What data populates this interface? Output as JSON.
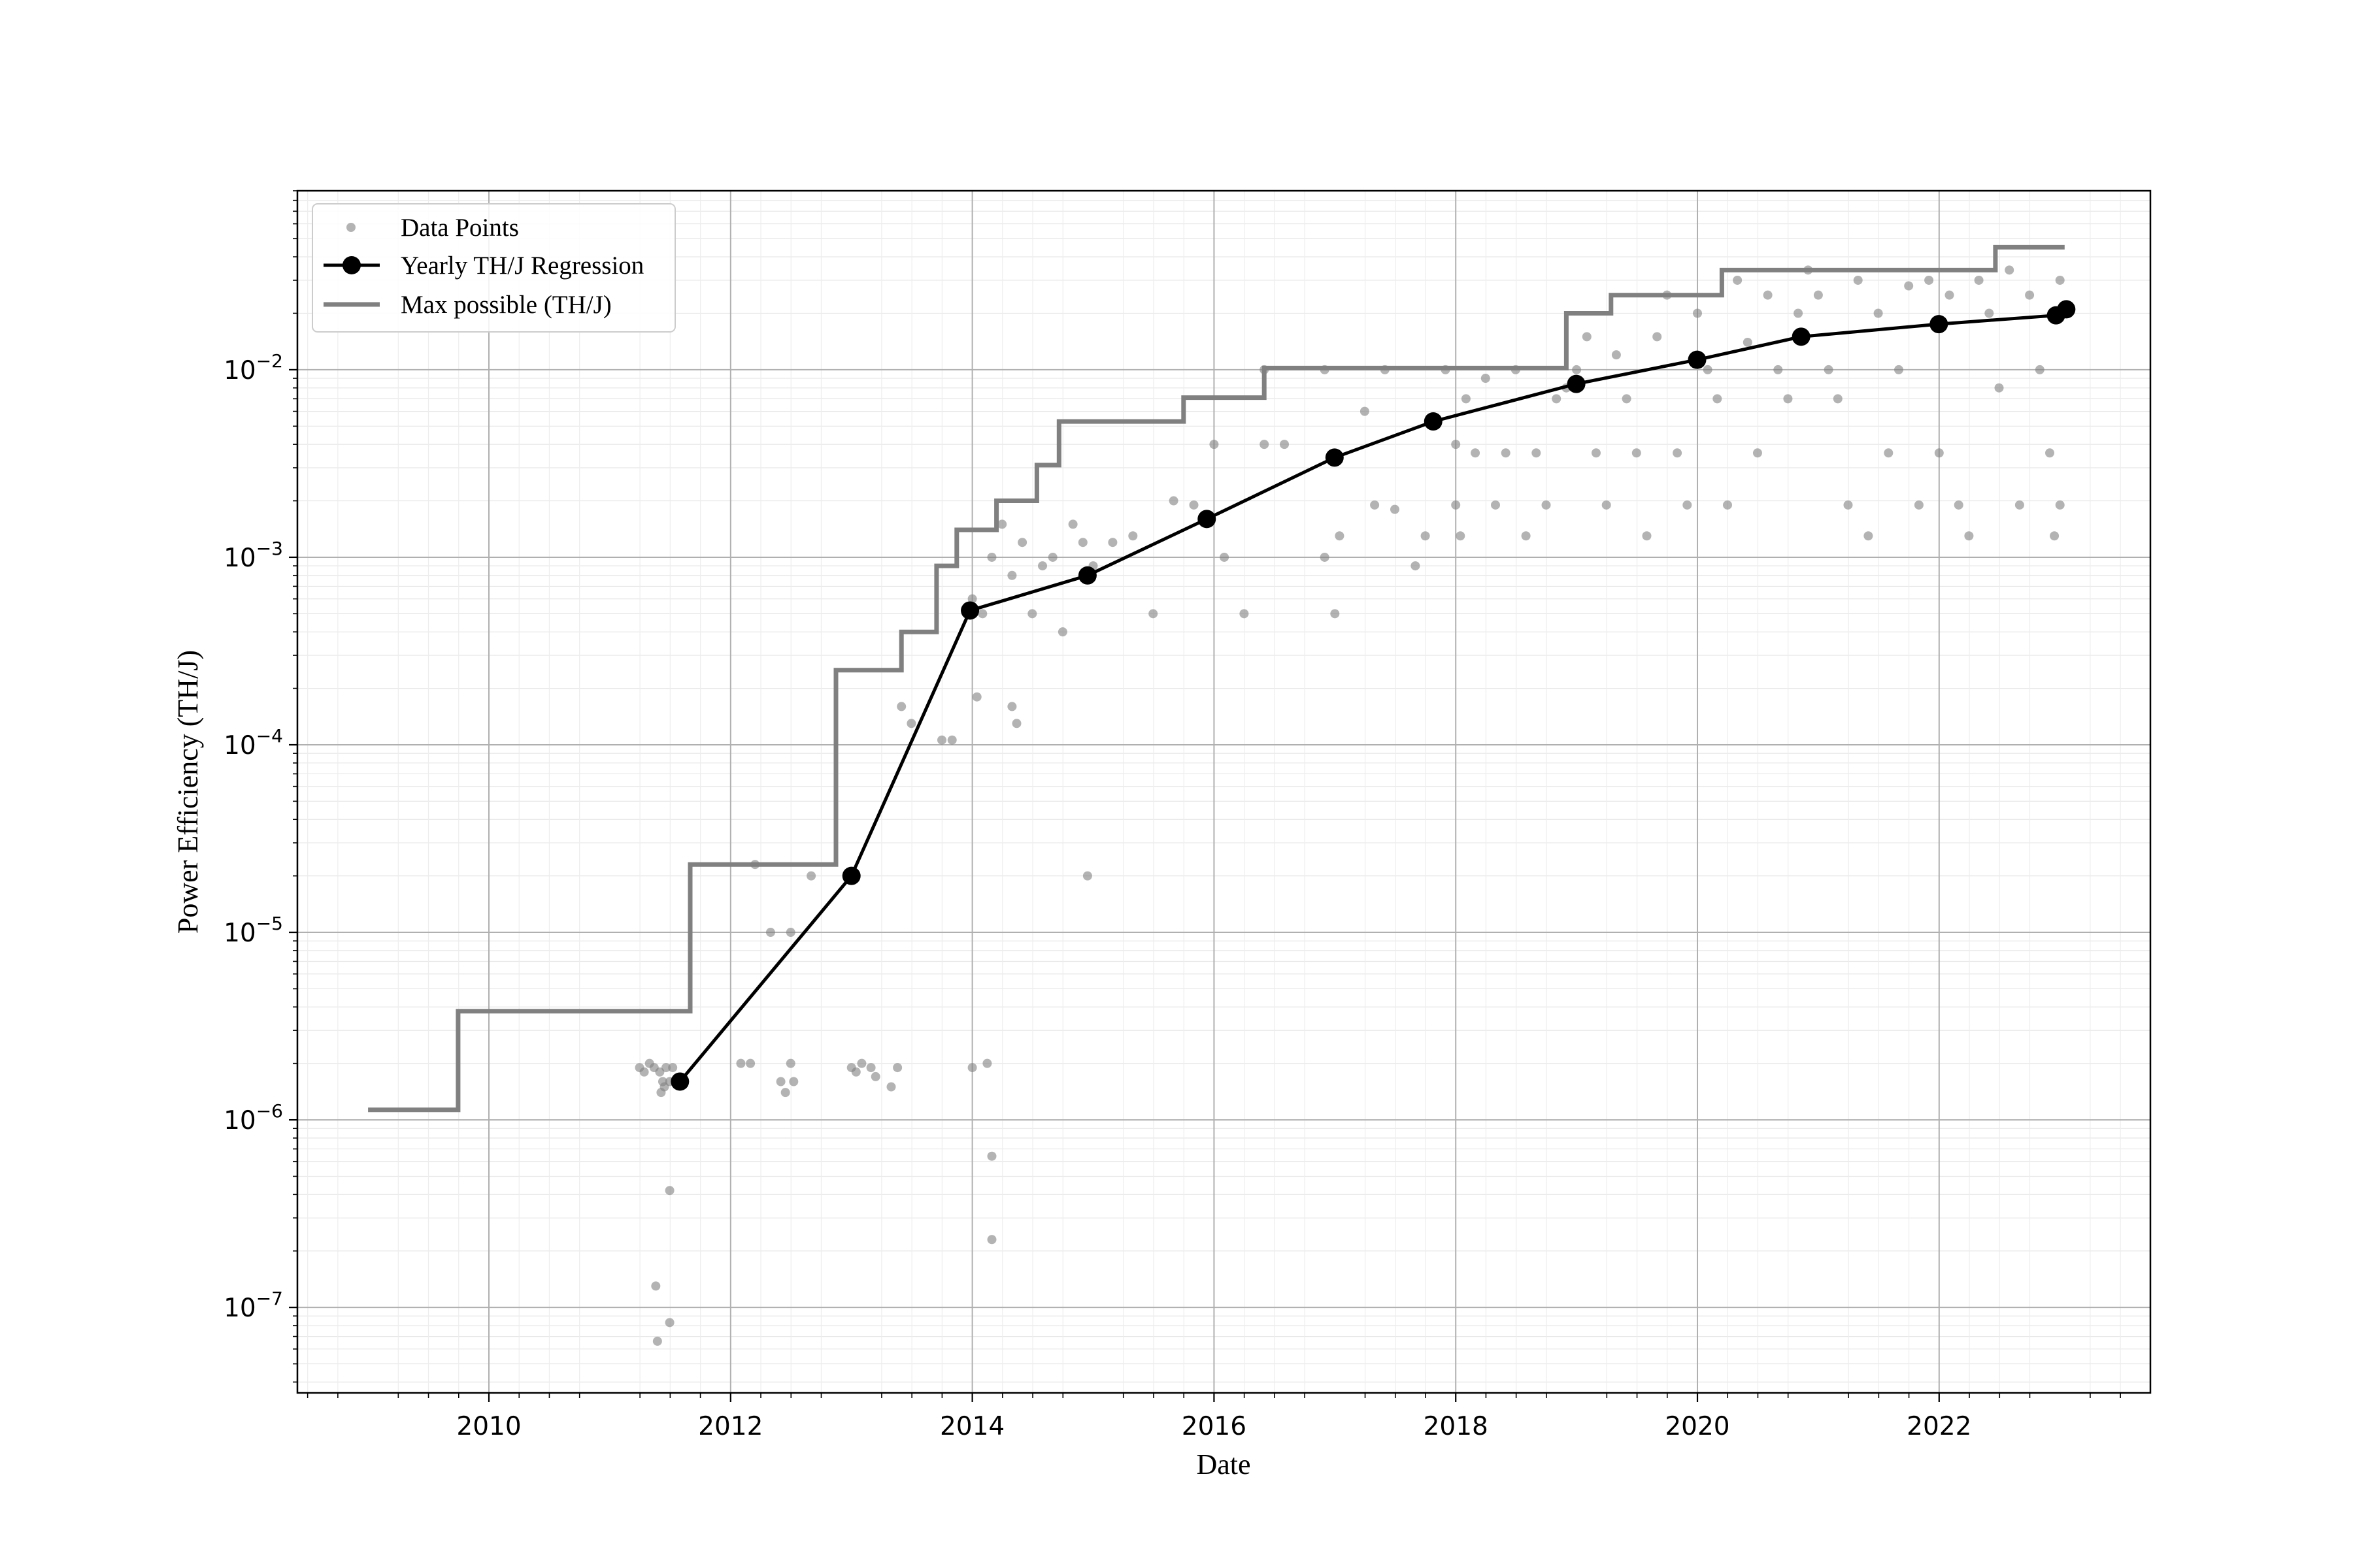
{
  "chart_data": {
    "type": "scatter",
    "title": "",
    "xlabel": "Date",
    "ylabel": "Power Efficiency (TH/J)",
    "x_axis": {
      "kind": "date",
      "range": [
        "2008-06-01",
        "2023-10-01"
      ],
      "ticks": [
        "2010",
        "2012",
        "2014",
        "2016",
        "2018",
        "2020",
        "2022"
      ]
    },
    "y_axis": {
      "scale": "log",
      "range": [
        3.5e-08,
        0.09
      ],
      "ticks": [
        1e-07,
        1e-06,
        1e-05,
        0.0001,
        0.001,
        0.01
      ],
      "tick_labels": [
        "10",
        "10",
        "10",
        "10",
        "10",
        "10"
      ],
      "tick_exponents": [
        "−7",
        "−6",
        "−5",
        "−4",
        "−3",
        "−2"
      ]
    },
    "grid": {
      "major": true,
      "minor": true
    },
    "legend": {
      "position": "top-left"
    },
    "colors": {
      "points": "#808080",
      "regression": "#000000",
      "max_line": "#808080"
    },
    "series": [
      {
        "name": "Data Points",
        "kind": "scatter",
        "points": [
          [
            "2011-04-01",
            1.9e-06
          ],
          [
            "2011-04-15",
            1.8e-06
          ],
          [
            "2011-05-01",
            2e-06
          ],
          [
            "2011-05-15",
            1.9e-06
          ],
          [
            "2011-06-01",
            1.8e-06
          ],
          [
            "2011-06-10",
            1.6e-06
          ],
          [
            "2011-06-15",
            1.5e-06
          ],
          [
            "2011-06-20",
            1.9e-06
          ],
          [
            "2011-07-01",
            1.6e-06
          ],
          [
            "2011-07-10",
            1.9e-06
          ],
          [
            "2011-06-05",
            1.4e-06
          ],
          [
            "2011-07-01",
            4.2e-07
          ],
          [
            "2011-05-20",
            1.3e-07
          ],
          [
            "2011-07-01",
            8.3e-08
          ],
          [
            "2011-05-25",
            6.6e-08
          ],
          [
            "2012-03-15",
            2.3e-05
          ],
          [
            "2012-05-01",
            1e-05
          ],
          [
            "2012-07-01",
            1e-05
          ],
          [
            "2012-09-01",
            2e-05
          ],
          [
            "2012-02-01",
            2e-06
          ],
          [
            "2012-03-01",
            2e-06
          ],
          [
            "2012-06-01",
            1.6e-06
          ],
          [
            "2012-06-15",
            1.4e-06
          ],
          [
            "2012-07-01",
            2e-06
          ],
          [
            "2012-07-10",
            1.6e-06
          ],
          [
            "2013-01-01",
            1.9e-06
          ],
          [
            "2013-01-15",
            1.8e-06
          ],
          [
            "2013-02-01",
            2e-06
          ],
          [
            "2013-03-01",
            1.9e-06
          ],
          [
            "2013-03-15",
            1.7e-06
          ],
          [
            "2013-05-01",
            1.5e-06
          ],
          [
            "2013-05-20",
            1.9e-06
          ],
          [
            "2014-01-01",
            1.9e-06
          ],
          [
            "2014-02-15",
            2e-06
          ],
          [
            "2014-03-01",
            6.4e-07
          ],
          [
            "2014-03-01",
            2.3e-07
          ],
          [
            "2013-06-01",
            0.00016
          ],
          [
            "2013-07-01",
            0.00013
          ],
          [
            "2013-10-01",
            0.000106
          ],
          [
            "2013-11-01",
            0.000106
          ],
          [
            "2014-01-15",
            0.00018
          ],
          [
            "2014-05-01",
            0.00016
          ],
          [
            "2014-05-15",
            0.00013
          ],
          [
            "2014-12-15",
            2e-05
          ],
          [
            "2014-01-01",
            0.0006
          ],
          [
            "2014-02-01",
            0.0005
          ],
          [
            "2014-03-01",
            0.001
          ],
          [
            "2014-04-01",
            0.0015
          ],
          [
            "2014-05-01",
            0.0008
          ],
          [
            "2014-06-01",
            0.0012
          ],
          [
            "2014-07-01",
            0.0005
          ],
          [
            "2014-08-01",
            0.0009
          ],
          [
            "2014-09-01",
            0.001
          ],
          [
            "2014-10-01",
            0.0004
          ],
          [
            "2014-11-01",
            0.0015
          ],
          [
            "2014-12-01",
            0.0012
          ],
          [
            "2015-01-01",
            0.0009
          ],
          [
            "2015-03-01",
            0.0012
          ],
          [
            "2015-05-01",
            0.0013
          ],
          [
            "2015-07-01",
            0.0005
          ],
          [
            "2015-09-01",
            0.002
          ],
          [
            "2015-11-01",
            0.0019
          ],
          [
            "2016-01-01",
            0.004
          ],
          [
            "2016-02-01",
            0.001
          ],
          [
            "2016-04-01",
            0.0005
          ],
          [
            "2016-06-01",
            0.004
          ],
          [
            "2016-08-01",
            0.004
          ],
          [
            "2016-12-01",
            0.001
          ],
          [
            "2017-01-01",
            0.0005
          ],
          [
            "2017-01-15",
            0.0013
          ],
          [
            "2017-04-01",
            0.006
          ],
          [
            "2017-07-01",
            0.0018
          ],
          [
            "2017-10-01",
            0.0013
          ],
          [
            "2017-09-01",
            0.0009
          ],
          [
            "2017-05-01",
            0.0019
          ],
          [
            "2016-06-01",
            0.01
          ],
          [
            "2016-12-01",
            0.01
          ],
          [
            "2017-06-01",
            0.01
          ],
          [
            "2017-12-01",
            0.01
          ],
          [
            "2018-01-01",
            0.004
          ],
          [
            "2018-01-01",
            0.0019
          ],
          [
            "2018-01-15",
            0.0013
          ],
          [
            "2018-02-01",
            0.007
          ],
          [
            "2018-03-01",
            0.0036
          ],
          [
            "2018-04-01",
            0.009
          ],
          [
            "2018-05-01",
            0.0019
          ],
          [
            "2018-06-01",
            0.0036
          ],
          [
            "2018-07-01",
            0.01
          ],
          [
            "2018-08-01",
            0.0013
          ],
          [
            "2018-09-01",
            0.0036
          ],
          [
            "2018-10-01",
            0.0019
          ],
          [
            "2018-11-01",
            0.007
          ],
          [
            "2018-12-01",
            0.008
          ],
          [
            "2019-01-01",
            0.01
          ],
          [
            "2019-02-01",
            0.015
          ],
          [
            "2019-03-01",
            0.0036
          ],
          [
            "2019-04-01",
            0.0019
          ],
          [
            "2019-05-01",
            0.012
          ],
          [
            "2019-06-01",
            0.007
          ],
          [
            "2019-07-01",
            0.0036
          ],
          [
            "2019-08-01",
            0.0013
          ],
          [
            "2019-09-01",
            0.015
          ],
          [
            "2019-10-01",
            0.025
          ],
          [
            "2019-11-01",
            0.0036
          ],
          [
            "2019-12-01",
            0.0019
          ],
          [
            "2020-01-01",
            0.02
          ],
          [
            "2020-02-01",
            0.01
          ],
          [
            "2020-03-01",
            0.007
          ],
          [
            "2020-04-01",
            0.0019
          ],
          [
            "2020-05-01",
            0.03
          ],
          [
            "2020-06-01",
            0.014
          ],
          [
            "2020-07-01",
            0.0036
          ],
          [
            "2020-08-01",
            0.025
          ],
          [
            "2020-09-01",
            0.01
          ],
          [
            "2020-10-01",
            0.007
          ],
          [
            "2020-11-01",
            0.02
          ],
          [
            "2020-12-01",
            0.034
          ],
          [
            "2021-01-01",
            0.025
          ],
          [
            "2021-02-01",
            0.01
          ],
          [
            "2021-03-01",
            0.007
          ],
          [
            "2021-04-01",
            0.0019
          ],
          [
            "2021-05-01",
            0.03
          ],
          [
            "2021-06-01",
            0.0013
          ],
          [
            "2021-07-01",
            0.02
          ],
          [
            "2021-08-01",
            0.0036
          ],
          [
            "2021-09-01",
            0.01
          ],
          [
            "2021-10-01",
            0.028
          ],
          [
            "2021-11-01",
            0.0019
          ],
          [
            "2021-12-01",
            0.03
          ],
          [
            "2022-01-01",
            0.0036
          ],
          [
            "2022-02-01",
            0.025
          ],
          [
            "2022-03-01",
            0.0019
          ],
          [
            "2022-04-01",
            0.0013
          ],
          [
            "2022-05-01",
            0.03
          ],
          [
            "2022-06-01",
            0.02
          ],
          [
            "2022-07-01",
            0.008
          ],
          [
            "2022-08-01",
            0.034
          ],
          [
            "2022-09-01",
            0.0019
          ],
          [
            "2022-10-01",
            0.025
          ],
          [
            "2022-11-01",
            0.01
          ],
          [
            "2022-12-01",
            0.0036
          ],
          [
            "2022-12-15",
            0.0013
          ],
          [
            "2023-01-01",
            0.0019
          ],
          [
            "2023-01-01",
            0.03
          ]
        ]
      },
      {
        "name": "Yearly TH/J Regression",
        "kind": "line",
        "points": [
          [
            "2011-08-01",
            1.6e-06
          ],
          [
            "2013-01-01",
            2e-05
          ],
          [
            "2013-12-25",
            0.00052
          ],
          [
            "2014-12-15",
            0.0008
          ],
          [
            "2015-12-10",
            0.0016
          ],
          [
            "2016-12-31",
            0.0034
          ],
          [
            "2017-10-25",
            0.0053
          ],
          [
            "2018-12-31",
            0.0084
          ],
          [
            "2019-12-31",
            0.0113
          ],
          [
            "2020-11-10",
            0.015
          ],
          [
            "2021-12-31",
            0.0175
          ],
          [
            "2022-12-20",
            0.0195
          ],
          [
            "2023-01-20",
            0.021
          ]
        ]
      },
      {
        "name": "Max possible (TH/J)",
        "kind": "step",
        "points": [
          [
            "2009-01-01",
            1.13e-06
          ],
          [
            "2009-09-30",
            1.13e-06
          ],
          [
            "2009-09-30",
            3.8e-06
          ],
          [
            "2011-09-01",
            3.8e-06
          ],
          [
            "2011-09-01",
            2.3e-05
          ],
          [
            "2012-11-15",
            2.3e-05
          ],
          [
            "2012-11-15",
            0.00025
          ],
          [
            "2013-06-01",
            0.00025
          ],
          [
            "2013-06-01",
            0.0004
          ],
          [
            "2013-09-15",
            0.0004
          ],
          [
            "2013-09-15",
            0.0009
          ],
          [
            "2013-11-15",
            0.0009
          ],
          [
            "2013-11-15",
            0.0014
          ],
          [
            "2014-03-15",
            0.0014
          ],
          [
            "2014-03-15",
            0.002
          ],
          [
            "2014-07-15",
            0.002
          ],
          [
            "2014-07-15",
            0.0031
          ],
          [
            "2014-09-20",
            0.0031
          ],
          [
            "2014-09-20",
            0.0053
          ],
          [
            "2015-10-01",
            0.0053
          ],
          [
            "2015-10-01",
            0.0071
          ],
          [
            "2016-06-01",
            0.0071
          ],
          [
            "2016-06-01",
            0.0102
          ],
          [
            "2018-12-01",
            0.0102
          ],
          [
            "2018-12-01",
            0.02
          ],
          [
            "2019-04-15",
            0.02
          ],
          [
            "2019-04-15",
            0.025
          ],
          [
            "2020-03-15",
            0.025
          ],
          [
            "2020-03-15",
            0.034
          ],
          [
            "2022-06-20",
            0.034
          ],
          [
            "2022-06-20",
            0.045
          ],
          [
            "2023-01-15",
            0.045
          ]
        ]
      }
    ]
  }
}
